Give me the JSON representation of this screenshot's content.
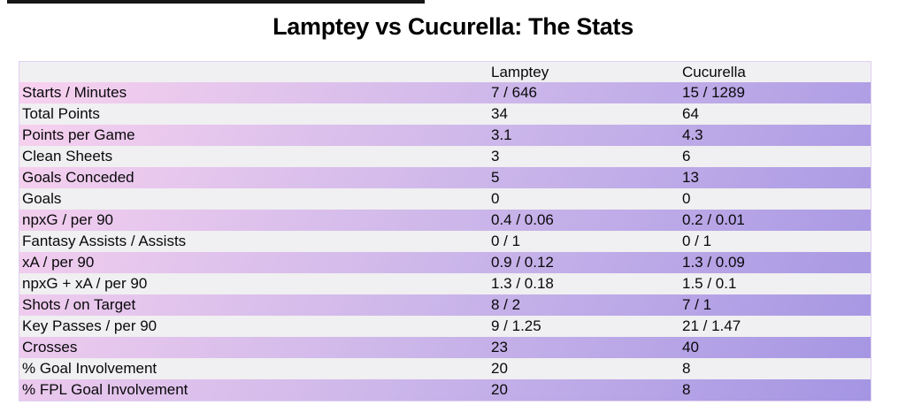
{
  "page": {
    "title": "Lamptey vs Cucurella: The Stats"
  },
  "colors": {
    "top_bar": "#161616",
    "row_gray": "#f0eff1",
    "gradient_start": "#f9d2ef",
    "gradient_mid": "#cdb7ea",
    "gradient_end": "#a495e3",
    "table_border": "#ded0f1",
    "text": "#09090a"
  },
  "chart_data": {
    "type": "table",
    "title": "Lamptey vs Cucurella: The Stats",
    "columns": [
      "",
      "Lamptey",
      "Cucurella"
    ],
    "rows": [
      {
        "label": "Starts / Minutes",
        "lamptey": "7 / 646",
        "cucurella": "15 / 1289"
      },
      {
        "label": "Total Points",
        "lamptey": "34",
        "cucurella": "64"
      },
      {
        "label": "Points per Game",
        "lamptey": "3.1",
        "cucurella": "4.3"
      },
      {
        "label": "Clean Sheets",
        "lamptey": "3",
        "cucurella": "6"
      },
      {
        "label": "Goals Conceded",
        "lamptey": "5",
        "cucurella": "13"
      },
      {
        "label": "Goals",
        "lamptey": "0",
        "cucurella": "0"
      },
      {
        "label": "npxG / per 90",
        "lamptey": "0.4 / 0.06",
        "cucurella": "0.2 / 0.01"
      },
      {
        "label": "Fantasy Assists / Assists",
        "lamptey": "0 / 1",
        "cucurella": "0 / 1"
      },
      {
        "label": "xA / per 90",
        "lamptey": "0.9 / 0.12",
        "cucurella": "1.3 / 0.09"
      },
      {
        "label": "npxG + xA / per 90",
        "lamptey": "1.3 / 0.18",
        "cucurella": "1.5 / 0.1"
      },
      {
        "label": "Shots / on Target",
        "lamptey": "8 / 2",
        "cucurella": "7 / 1"
      },
      {
        "label": "Key Passes / per 90",
        "lamptey": "9 / 1.25",
        "cucurella": "21 / 1.47"
      },
      {
        "label": "Crosses",
        "lamptey": "23",
        "cucurella": "40"
      },
      {
        "label": "% Goal Involvement",
        "lamptey": "20",
        "cucurella": "8"
      },
      {
        "label": "% FPL Goal Involvement",
        "lamptey": "20",
        "cucurella": "8"
      }
    ],
    "layout": {
      "row_striping": "odd rows pink-to-purple diagonal gradient, even rows light gray",
      "header_background": "light gray",
      "grid": "off"
    }
  }
}
